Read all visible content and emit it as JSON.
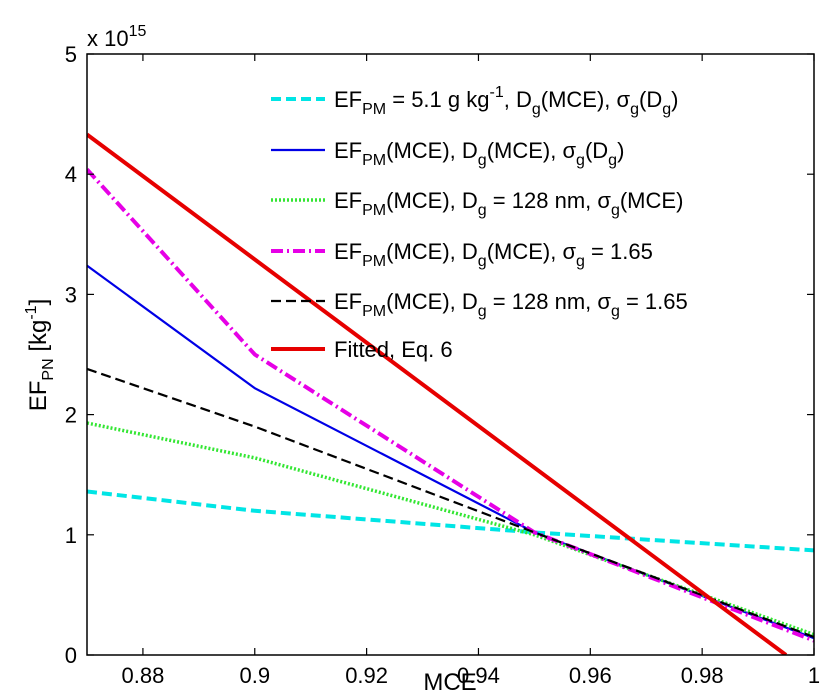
{
  "chart_data": {
    "type": "line",
    "xlabel": "MCE",
    "ylabel_main": "EF",
    "ylabel_sub": "PN",
    "ylabel_unit_open": " [kg",
    "ylabel_unit_sup": "-1",
    "ylabel_unit_close": "]",
    "y_multiplier_text": "x 10",
    "y_multiplier_exp": "15",
    "xlim": [
      0.87,
      1.0
    ],
    "ylim": [
      0,
      5
    ],
    "x_ticks": [
      0.88,
      0.9,
      0.92,
      0.94,
      0.96,
      0.98,
      1
    ],
    "x_tick_labels": [
      "0.88",
      "0.9",
      "0.92",
      "0.94",
      "0.96",
      "0.98",
      "1"
    ],
    "y_ticks": [
      0,
      1,
      2,
      3,
      4,
      5
    ],
    "y_tick_labels": [
      "0",
      "1",
      "2",
      "3",
      "4",
      "5"
    ],
    "grid": false,
    "legend_position": "top-right",
    "series": [
      {
        "color": "#00e5e5",
        "style": "dashed",
        "legend": [
          {
            "t": "EF"
          },
          {
            "t": "PM",
            "s": "sub"
          },
          {
            "t": " = 5.1 g kg"
          },
          {
            "t": "-1",
            "s": "sup"
          },
          {
            "t": ", D"
          },
          {
            "t": "g",
            "s": "sub"
          },
          {
            "t": "(MCE), σ"
          },
          {
            "t": "g",
            "s": "sub"
          },
          {
            "t": "(D"
          },
          {
            "t": "g",
            "s": "sub"
          },
          {
            "t": ")"
          }
        ],
        "x": [
          0.87,
          0.9,
          0.95,
          1.0
        ],
        "y": [
          1.36,
          1.2,
          1.02,
          0.87
        ]
      },
      {
        "color": "#0000e6",
        "style": "solid",
        "legend": [
          {
            "t": "EF"
          },
          {
            "t": "PM",
            "s": "sub"
          },
          {
            "t": "(MCE), D"
          },
          {
            "t": "g",
            "s": "sub"
          },
          {
            "t": "(MCE), σ"
          },
          {
            "t": "g",
            "s": "sub"
          },
          {
            "t": "(D"
          },
          {
            "t": "g",
            "s": "sub"
          },
          {
            "t": ")"
          }
        ],
        "x": [
          0.87,
          0.9,
          0.95,
          1.0
        ],
        "y": [
          3.24,
          2.22,
          1.02,
          0.14
        ]
      },
      {
        "color": "#33e633",
        "style": "dotted",
        "legend": [
          {
            "t": "EF"
          },
          {
            "t": "PM",
            "s": "sub"
          },
          {
            "t": "(MCE), D"
          },
          {
            "t": "g",
            "s": "sub"
          },
          {
            "t": " = 128 nm, σ"
          },
          {
            "t": "g",
            "s": "sub"
          },
          {
            "t": "(MCE)"
          }
        ],
        "x": [
          0.87,
          0.9,
          0.95,
          1.0
        ],
        "y": [
          1.93,
          1.64,
          1.0,
          0.17
        ]
      },
      {
        "color": "#e600e6",
        "style": "dashdot",
        "legend": [
          {
            "t": "EF"
          },
          {
            "t": "PM",
            "s": "sub"
          },
          {
            "t": "(MCE), D"
          },
          {
            "t": "g",
            "s": "sub"
          },
          {
            "t": "(MCE), σ"
          },
          {
            "t": "g",
            "s": "sub"
          },
          {
            "t": " = 1.65"
          }
        ],
        "x": [
          0.87,
          0.9,
          0.95,
          1.0
        ],
        "y": [
          4.04,
          2.5,
          1.02,
          0.12
        ]
      },
      {
        "color": "#000000",
        "style": "dashed",
        "legend": [
          {
            "t": "EF"
          },
          {
            "t": "PM",
            "s": "sub"
          },
          {
            "t": "(MCE), D"
          },
          {
            "t": "g",
            "s": "sub"
          },
          {
            "t": " = 128 nm, σ"
          },
          {
            "t": "g",
            "s": "sub"
          },
          {
            "t": " = 1.65"
          }
        ],
        "x": [
          0.87,
          0.9,
          0.95,
          1.0
        ],
        "y": [
          2.38,
          1.9,
          1.02,
          0.15
        ]
      },
      {
        "color": "#e60000",
        "style": "solid",
        "legend": [
          {
            "t": "Fitted, Eq. 6"
          }
        ],
        "x": [
          0.87,
          0.995
        ],
        "y": [
          4.33,
          0.0
        ]
      }
    ]
  }
}
